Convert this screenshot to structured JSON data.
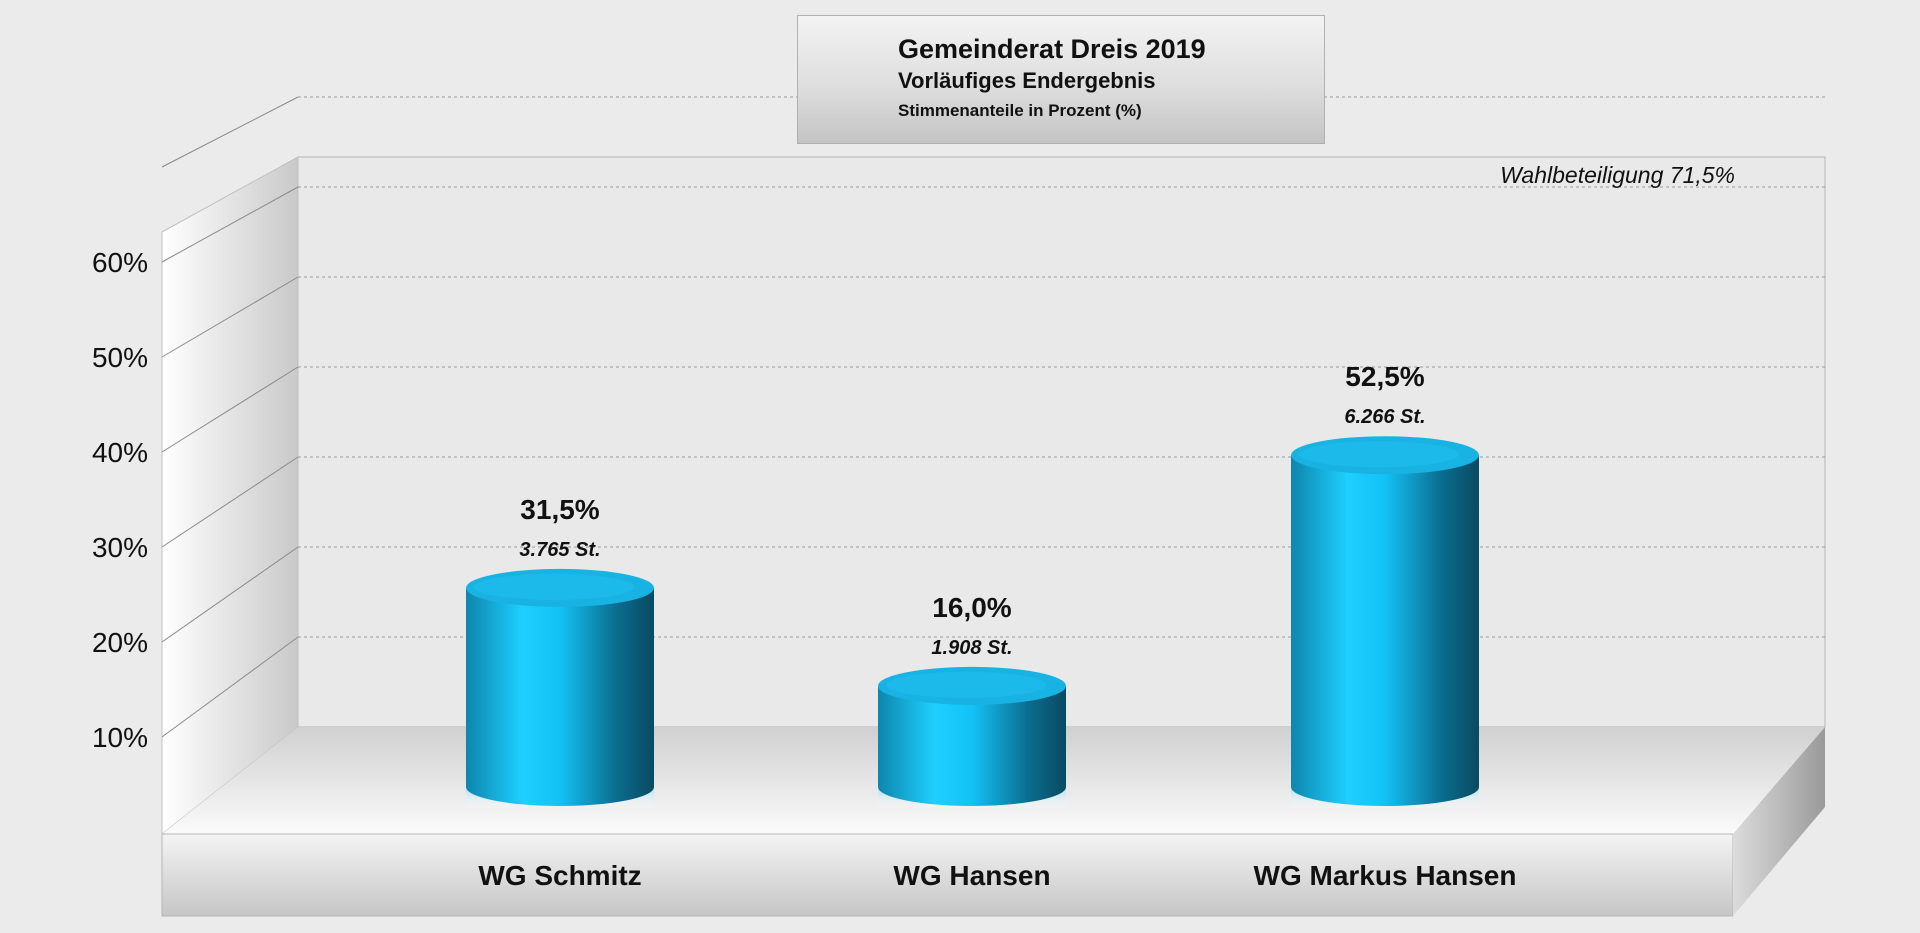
{
  "chart_data": {
    "type": "bar",
    "title": "Gemeinderat Dreis 2019",
    "subtitle": "Vorläufiges Endergebnis",
    "subtitle2": "Stimmenanteile in Prozent (%)",
    "annotation": "Wahlbeteiligung 71,5%",
    "categories": [
      "WG Schmitz",
      "WG Hansen",
      "WG Markus Hansen"
    ],
    "values": [
      31.5,
      16.0,
      52.5
    ],
    "value_labels": [
      "31,5%",
      "16,0%",
      "52,5%"
    ],
    "vote_labels": [
      "3.765 St.",
      "1.908 St.",
      "6.266 St."
    ],
    "yticks": [
      10,
      20,
      30,
      40,
      50,
      60
    ],
    "ytick_labels": [
      "10%",
      "20%",
      "30%",
      "40%",
      "50%",
      "60%"
    ],
    "ylim": [
      0,
      60
    ],
    "grid": true,
    "bar_style": "3d-cylinder",
    "bar_color": "#17b4e0"
  }
}
